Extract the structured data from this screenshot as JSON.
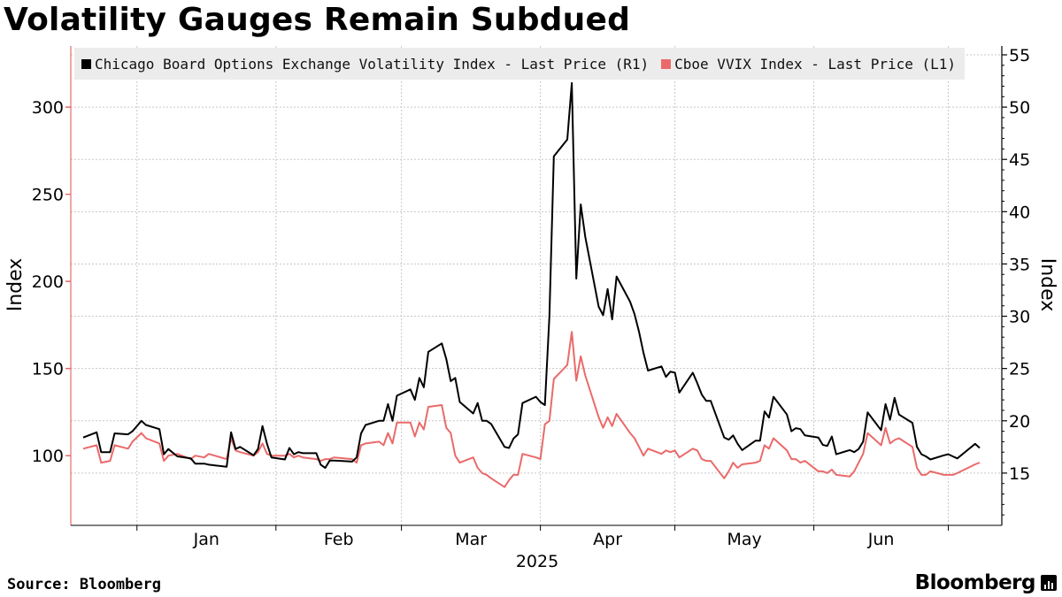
{
  "chart_data": {
    "type": "line",
    "title": "Volatility Gauges Remain Subdued",
    "source": "Source: Bloomberg",
    "brand": "Bloomberg",
    "xlabel": "2025",
    "ylabel_left": "Index",
    "ylabel_right": "Index",
    "x_ticks": [
      "Jan",
      "Feb",
      "Mar",
      "Apr",
      "May",
      "Jun"
    ],
    "x_range": [
      "2024-12-20",
      "2025-07-08"
    ],
    "y_left": {
      "min": 60,
      "max": 330,
      "ticks": [
        100,
        150,
        200,
        250,
        300
      ]
    },
    "y_right": {
      "min": 10,
      "max": 55,
      "ticks": [
        15,
        20,
        25,
        30,
        35,
        40,
        45,
        50,
        55
      ]
    },
    "legend_position": "top-left",
    "grid": true,
    "series": [
      {
        "name": "Chicago Board Options Exchange Volatility Index - Last Price (R1)",
        "axis": "right",
        "color": "#000000",
        "points": [
          [
            "2024-12-20",
            18.4
          ],
          [
            "2024-12-23",
            18.9
          ],
          [
            "2024-12-24",
            17.0
          ],
          [
            "2024-12-26",
            17.0
          ],
          [
            "2024-12-27",
            18.8
          ],
          [
            "2024-12-30",
            18.7
          ],
          [
            "2024-12-31",
            19.0
          ],
          [
            "2025-01-02",
            20.0
          ],
          [
            "2025-01-03",
            19.6
          ],
          [
            "2025-01-06",
            19.2
          ],
          [
            "2025-01-07",
            16.8
          ],
          [
            "2025-01-08",
            17.3
          ],
          [
            "2025-01-10",
            16.6
          ],
          [
            "2025-01-13",
            16.4
          ],
          [
            "2025-01-14",
            15.9
          ],
          [
            "2025-01-16",
            15.9
          ],
          [
            "2025-01-17",
            15.8
          ],
          [
            "2025-01-21",
            15.6
          ],
          [
            "2025-01-22",
            18.9
          ],
          [
            "2025-01-23",
            17.3
          ],
          [
            "2025-01-24",
            17.5
          ],
          [
            "2025-01-27",
            16.7
          ],
          [
            "2025-01-28",
            17.3
          ],
          [
            "2025-01-29",
            19.5
          ],
          [
            "2025-01-30",
            17.8
          ],
          [
            "2025-01-31",
            16.5
          ],
          [
            "2025-02-03",
            16.3
          ],
          [
            "2025-02-04",
            17.4
          ],
          [
            "2025-02-05",
            16.8
          ],
          [
            "2025-02-06",
            17.0
          ],
          [
            "2025-02-07",
            16.9
          ],
          [
            "2025-02-10",
            16.9
          ],
          [
            "2025-02-11",
            15.8
          ],
          [
            "2025-02-12",
            15.5
          ],
          [
            "2025-02-13",
            16.2
          ],
          [
            "2025-02-14",
            16.2
          ],
          [
            "2025-02-18",
            16.1
          ],
          [
            "2025-02-19",
            16.5
          ],
          [
            "2025-02-20",
            18.8
          ],
          [
            "2025-02-21",
            19.6
          ],
          [
            "2025-02-24",
            20.0
          ],
          [
            "2025-02-25",
            20.0
          ],
          [
            "2025-02-26",
            21.6
          ],
          [
            "2025-02-27",
            20.0
          ],
          [
            "2025-02-28",
            22.4
          ],
          [
            "2025-03-03",
            23.0
          ],
          [
            "2025-03-04",
            22.0
          ],
          [
            "2025-03-05",
            24.1
          ],
          [
            "2025-03-06",
            23.2
          ],
          [
            "2025-03-07",
            26.6
          ],
          [
            "2025-03-10",
            27.4
          ],
          [
            "2025-03-11",
            25.9
          ],
          [
            "2025-03-12",
            23.8
          ],
          [
            "2025-03-13",
            24.1
          ],
          [
            "2025-03-14",
            21.8
          ],
          [
            "2025-03-17",
            20.7
          ],
          [
            "2025-03-18",
            21.7
          ],
          [
            "2025-03-19",
            20.0
          ],
          [
            "2025-03-20",
            20.0
          ],
          [
            "2025-03-21",
            19.7
          ],
          [
            "2025-03-24",
            17.5
          ],
          [
            "2025-03-25",
            17.4
          ],
          [
            "2025-03-26",
            18.3
          ],
          [
            "2025-03-27",
            18.7
          ],
          [
            "2025-03-28",
            21.7
          ],
          [
            "2025-03-31",
            22.3
          ],
          [
            "2025-04-01",
            21.8
          ],
          [
            "2025-04-02",
            21.5
          ],
          [
            "2025-04-03",
            30.0
          ],
          [
            "2025-04-04",
            45.3
          ],
          [
            "2025-04-07",
            46.9
          ],
          [
            "2025-04-08",
            52.3
          ],
          [
            "2025-04-09",
            33.6
          ],
          [
            "2025-04-10",
            40.7
          ],
          [
            "2025-04-11",
            37.6
          ],
          [
            "2025-04-14",
            30.9
          ],
          [
            "2025-04-15",
            30.1
          ],
          [
            "2025-04-16",
            32.6
          ],
          [
            "2025-04-17",
            29.7
          ],
          [
            "2025-04-18",
            33.8
          ],
          [
            "2025-04-21",
            31.4
          ],
          [
            "2025-04-22",
            30.2
          ],
          [
            "2025-04-23",
            28.5
          ],
          [
            "2025-04-24",
            26.5
          ],
          [
            "2025-04-25",
            24.8
          ],
          [
            "2025-04-28",
            25.2
          ],
          [
            "2025-04-29",
            24.2
          ],
          [
            "2025-04-30",
            24.7
          ],
          [
            "2025-05-01",
            24.6
          ],
          [
            "2025-05-02",
            22.7
          ],
          [
            "2025-05-05",
            24.6
          ],
          [
            "2025-05-06",
            23.6
          ],
          [
            "2025-05-07",
            22.5
          ],
          [
            "2025-05-08",
            21.9
          ],
          [
            "2025-05-09",
            21.9
          ],
          [
            "2025-05-12",
            18.4
          ],
          [
            "2025-05-13",
            18.2
          ],
          [
            "2025-05-14",
            18.6
          ],
          [
            "2025-05-15",
            17.8
          ],
          [
            "2025-05-16",
            17.2
          ],
          [
            "2025-05-19",
            18.1
          ],
          [
            "2025-05-20",
            18.1
          ],
          [
            "2025-05-21",
            20.9
          ],
          [
            "2025-05-22",
            20.3
          ],
          [
            "2025-05-23",
            22.3
          ],
          [
            "2025-05-26",
            20.6
          ],
          [
            "2025-05-27",
            19.0
          ],
          [
            "2025-05-28",
            19.3
          ],
          [
            "2025-05-29",
            19.2
          ],
          [
            "2025-05-30",
            18.6
          ],
          [
            "2025-06-02",
            18.4
          ],
          [
            "2025-06-03",
            17.7
          ],
          [
            "2025-06-04",
            17.6
          ],
          [
            "2025-06-05",
            18.5
          ],
          [
            "2025-06-06",
            16.8
          ],
          [
            "2025-06-09",
            17.2
          ],
          [
            "2025-06-10",
            17.0
          ],
          [
            "2025-06-11",
            17.3
          ],
          [
            "2025-06-12",
            18.0
          ],
          [
            "2025-06-13",
            20.8
          ],
          [
            "2025-06-16",
            19.1
          ],
          [
            "2025-06-17",
            21.6
          ],
          [
            "2025-06-18",
            20.1
          ],
          [
            "2025-06-19",
            22.2
          ],
          [
            "2025-06-20",
            20.6
          ],
          [
            "2025-06-23",
            19.8
          ],
          [
            "2025-06-24",
            17.5
          ],
          [
            "2025-06-25",
            16.8
          ],
          [
            "2025-06-26",
            16.6
          ],
          [
            "2025-06-27",
            16.3
          ],
          [
            "2025-06-30",
            16.7
          ],
          [
            "2025-07-01",
            16.8
          ],
          [
            "2025-07-02",
            16.6
          ],
          [
            "2025-07-03",
            16.4
          ],
          [
            "2025-07-07",
            17.8
          ],
          [
            "2025-07-08",
            17.4
          ]
        ]
      },
      {
        "name": "Cboe VVIX Index - Last Price (L1)",
        "axis": "left",
        "color": "#ea6a6a",
        "points": [
          [
            "2024-12-20",
            104
          ],
          [
            "2024-12-23",
            106
          ],
          [
            "2024-12-24",
            96
          ],
          [
            "2024-12-26",
            97
          ],
          [
            "2024-12-27",
            106
          ],
          [
            "2024-12-30",
            104
          ],
          [
            "2024-12-31",
            108
          ],
          [
            "2025-01-02",
            113
          ],
          [
            "2025-01-03",
            110
          ],
          [
            "2025-01-06",
            107
          ],
          [
            "2025-01-07",
            97
          ],
          [
            "2025-01-08",
            100
          ],
          [
            "2025-01-10",
            101
          ],
          [
            "2025-01-13",
            98
          ],
          [
            "2025-01-14",
            100
          ],
          [
            "2025-01-16",
            99
          ],
          [
            "2025-01-17",
            101
          ],
          [
            "2025-01-21",
            98
          ],
          [
            "2025-01-22",
            110
          ],
          [
            "2025-01-23",
            103
          ],
          [
            "2025-01-24",
            102
          ],
          [
            "2025-01-27",
            100
          ],
          [
            "2025-01-28",
            102
          ],
          [
            "2025-01-29",
            107
          ],
          [
            "2025-01-30",
            101
          ],
          [
            "2025-01-31",
            100
          ],
          [
            "2025-02-03",
            100
          ],
          [
            "2025-02-04",
            101
          ],
          [
            "2025-02-05",
            99
          ],
          [
            "2025-02-06",
            100
          ],
          [
            "2025-02-07",
            99
          ],
          [
            "2025-02-10",
            98
          ],
          [
            "2025-02-11",
            97
          ],
          [
            "2025-02-12",
            98
          ],
          [
            "2025-02-13",
            98
          ],
          [
            "2025-02-14",
            99
          ],
          [
            "2025-02-18",
            98
          ],
          [
            "2025-02-19",
            96
          ],
          [
            "2025-02-20",
            106
          ],
          [
            "2025-02-21",
            107
          ],
          [
            "2025-02-24",
            108
          ],
          [
            "2025-02-25",
            106
          ],
          [
            "2025-02-26",
            113
          ],
          [
            "2025-02-27",
            107
          ],
          [
            "2025-02-28",
            119
          ],
          [
            "2025-03-03",
            119
          ],
          [
            "2025-03-04",
            111
          ],
          [
            "2025-03-05",
            119
          ],
          [
            "2025-03-06",
            115
          ],
          [
            "2025-03-07",
            128
          ],
          [
            "2025-03-10",
            129
          ],
          [
            "2025-03-11",
            116
          ],
          [
            "2025-03-12",
            113
          ],
          [
            "2025-03-13",
            100
          ],
          [
            "2025-03-14",
            96
          ],
          [
            "2025-03-17",
            99
          ],
          [
            "2025-03-18",
            93
          ],
          [
            "2025-03-19",
            90
          ],
          [
            "2025-03-20",
            89
          ],
          [
            "2025-03-21",
            87
          ],
          [
            "2025-03-24",
            82
          ],
          [
            "2025-03-25",
            86
          ],
          [
            "2025-03-26",
            89
          ],
          [
            "2025-03-27",
            89
          ],
          [
            "2025-03-28",
            101
          ],
          [
            "2025-03-31",
            99
          ],
          [
            "2025-04-01",
            98
          ],
          [
            "2025-04-02",
            118
          ],
          [
            "2025-04-03",
            120
          ],
          [
            "2025-04-04",
            144
          ],
          [
            "2025-04-07",
            152
          ],
          [
            "2025-04-08",
            171
          ],
          [
            "2025-04-09",
            143
          ],
          [
            "2025-04-10",
            157
          ],
          [
            "2025-04-11",
            146
          ],
          [
            "2025-04-14",
            122
          ],
          [
            "2025-04-15",
            116
          ],
          [
            "2025-04-16",
            122
          ],
          [
            "2025-04-17",
            117
          ],
          [
            "2025-04-18",
            124
          ],
          [
            "2025-04-21",
            113
          ],
          [
            "2025-04-22",
            110
          ],
          [
            "2025-04-23",
            105
          ],
          [
            "2025-04-24",
            100
          ],
          [
            "2025-04-25",
            104
          ],
          [
            "2025-04-28",
            101
          ],
          [
            "2025-04-29",
            103
          ],
          [
            "2025-04-30",
            102
          ],
          [
            "2025-05-01",
            103
          ],
          [
            "2025-05-02",
            99
          ],
          [
            "2025-05-05",
            104
          ],
          [
            "2025-05-06",
            103
          ],
          [
            "2025-05-07",
            98
          ],
          [
            "2025-05-08",
            97
          ],
          [
            "2025-05-09",
            97
          ],
          [
            "2025-05-12",
            87
          ],
          [
            "2025-05-13",
            91
          ],
          [
            "2025-05-14",
            96
          ],
          [
            "2025-05-15",
            93
          ],
          [
            "2025-05-16",
            95
          ],
          [
            "2025-05-19",
            96
          ],
          [
            "2025-05-20",
            97
          ],
          [
            "2025-05-21",
            106
          ],
          [
            "2025-05-22",
            104
          ],
          [
            "2025-05-23",
            110
          ],
          [
            "2025-05-26",
            103
          ],
          [
            "2025-05-27",
            98
          ],
          [
            "2025-05-28",
            98
          ],
          [
            "2025-05-29",
            96
          ],
          [
            "2025-05-30",
            97
          ],
          [
            "2025-06-02",
            91
          ],
          [
            "2025-06-03",
            91
          ],
          [
            "2025-06-04",
            90
          ],
          [
            "2025-06-05",
            92
          ],
          [
            "2025-06-06",
            89
          ],
          [
            "2025-06-09",
            88
          ],
          [
            "2025-06-10",
            91
          ],
          [
            "2025-06-11",
            96
          ],
          [
            "2025-06-12",
            101
          ],
          [
            "2025-06-13",
            113
          ],
          [
            "2025-06-16",
            106
          ],
          [
            "2025-06-17",
            116
          ],
          [
            "2025-06-18",
            107
          ],
          [
            "2025-06-19",
            109
          ],
          [
            "2025-06-20",
            110
          ],
          [
            "2025-06-23",
            105
          ],
          [
            "2025-06-24",
            93
          ],
          [
            "2025-06-25",
            89
          ],
          [
            "2025-06-26",
            89
          ],
          [
            "2025-06-27",
            91
          ],
          [
            "2025-06-30",
            89
          ],
          [
            "2025-07-01",
            89
          ],
          [
            "2025-07-02",
            89
          ],
          [
            "2025-07-03",
            90
          ],
          [
            "2025-07-07",
            95
          ],
          [
            "2025-07-08",
            96
          ]
        ]
      }
    ]
  }
}
